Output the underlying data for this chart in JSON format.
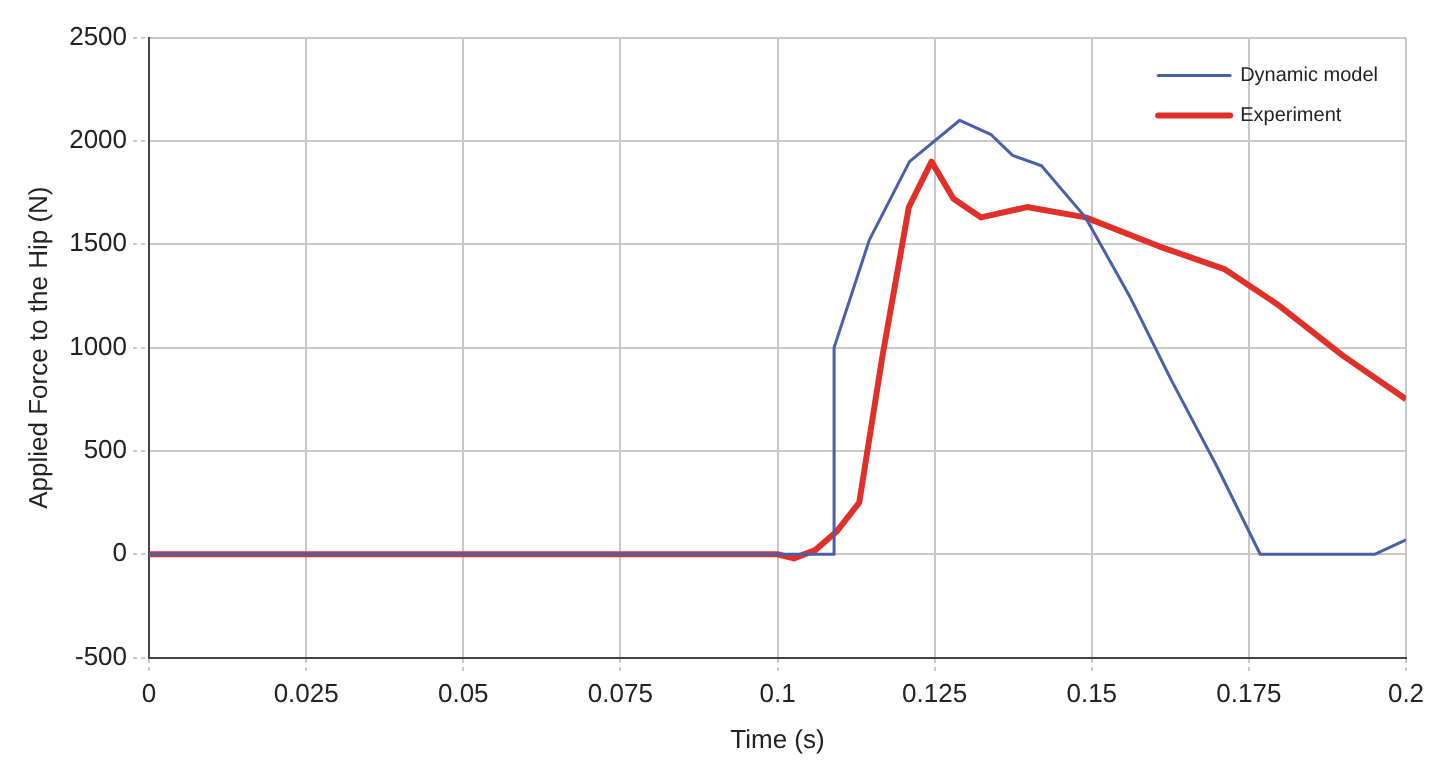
{
  "chart_data": {
    "type": "line",
    "xlabel": "Time (s)",
    "ylabel": "Applied Force to the Hip (N)",
    "xlim": [
      0,
      0.2
    ],
    "xticks": [
      0,
      0.025,
      0.05,
      0.075,
      0.1,
      0.125,
      0.15,
      0.175,
      0.2
    ],
    "ylim": [
      -500,
      2500
    ],
    "yticks": [
      -500,
      0,
      500,
      1000,
      1500,
      2000,
      2500
    ],
    "grid": true,
    "legend": "top right",
    "line_style": "solid",
    "marker": "none",
    "series": [
      {
        "name": "Dynamic model",
        "color": "#4a5fa8",
        "x": [
          0,
          0.109,
          0.109,
          0.1146,
          0.121,
          0.129,
          0.134,
          0.1374,
          0.142,
          0.149,
          0.156,
          0.1627,
          0.17,
          0.1768,
          0.195,
          0.2
        ],
        "values": [
          0,
          0,
          1000,
          1520,
          1900,
          2100,
          2030,
          1930,
          1880,
          1630,
          1250,
          840,
          420,
          0,
          0,
          70
        ]
      },
      {
        "name": "Experiment",
        "color": "#e0302a",
        "x": [
          0,
          0.1,
          0.1026,
          0.106,
          0.1094,
          0.113,
          0.1167,
          0.1209,
          0.1245,
          0.128,
          0.1324,
          0.1397,
          0.149,
          0.1607,
          0.1711,
          0.1795,
          0.19,
          0.2
        ],
        "values": [
          0,
          0,
          -20,
          20,
          110,
          250,
          960,
          1680,
          1900,
          1720,
          1630,
          1680,
          1630,
          1490,
          1380,
          1210,
          960,
          750
        ]
      }
    ]
  }
}
